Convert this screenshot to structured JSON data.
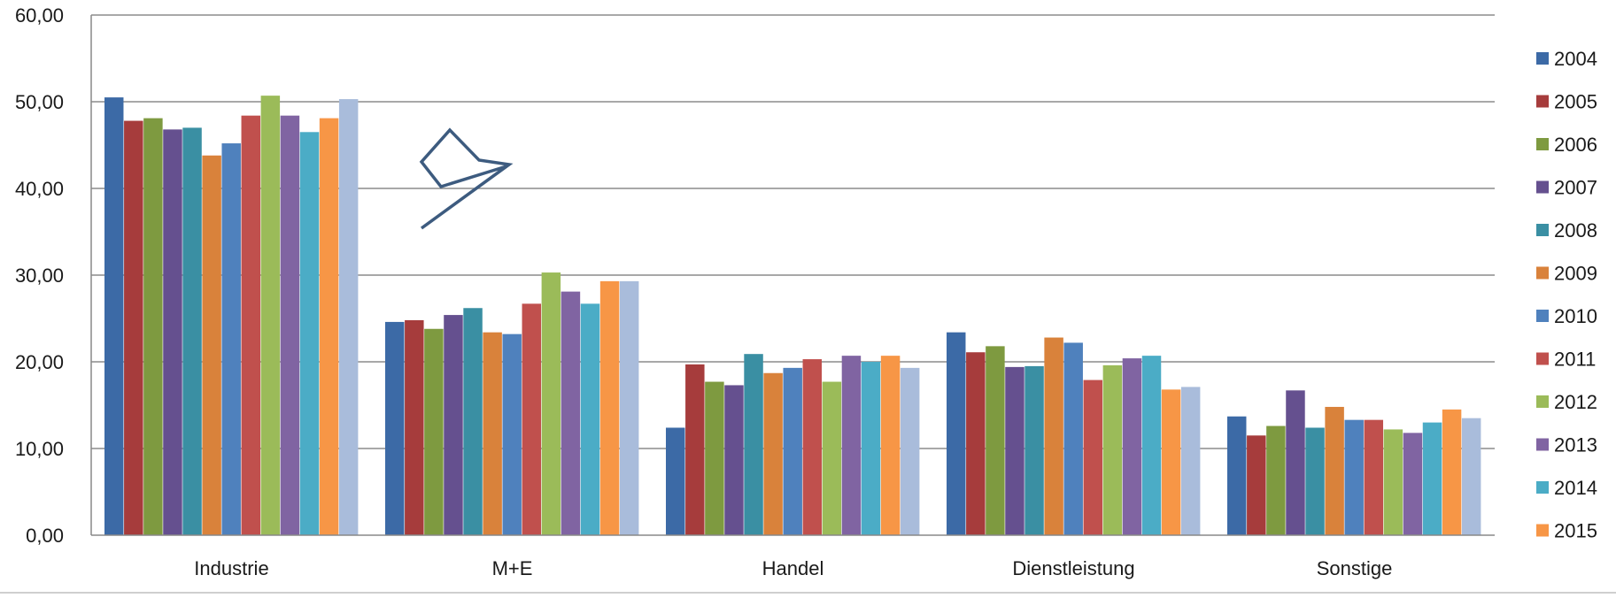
{
  "chart_data": {
    "type": "bar",
    "title": "",
    "xlabel": "",
    "ylabel": "",
    "ylim": [
      0,
      60
    ],
    "yticks": [
      "0,00",
      "10,00",
      "20,00",
      "30,00",
      "40,00",
      "50,00",
      "60,00"
    ],
    "grid": true,
    "legend_position": "right",
    "categories": [
      "Industrie",
      "M+E",
      "Handel",
      "Dienstleistung",
      "Sonstige"
    ],
    "series": [
      {
        "name": "2004",
        "color": "#3C6AA6",
        "values": [
          50.5,
          24.6,
          12.4,
          23.4,
          13.7
        ]
      },
      {
        "name": "2005",
        "color": "#A63C3C",
        "values": [
          47.8,
          24.8,
          19.7,
          21.1,
          11.5
        ]
      },
      {
        "name": "2006",
        "color": "#7E9A40",
        "values": [
          48.1,
          23.8,
          17.7,
          21.8,
          12.6
        ]
      },
      {
        "name": "2007",
        "color": "#65508F",
        "values": [
          46.8,
          25.4,
          17.3,
          19.4,
          16.7
        ]
      },
      {
        "name": "2008",
        "color": "#3A8FA3",
        "values": [
          47.0,
          26.2,
          20.9,
          19.5,
          12.4
        ]
      },
      {
        "name": "2009",
        "color": "#D9823B",
        "values": [
          43.8,
          23.4,
          18.7,
          22.8,
          14.8
        ]
      },
      {
        "name": "2010",
        "color": "#4F81BD",
        "values": [
          45.2,
          23.2,
          19.3,
          22.2,
          13.3
        ]
      },
      {
        "name": "2011",
        "color": "#C0504D",
        "values": [
          48.4,
          26.7,
          20.3,
          17.9,
          13.3
        ]
      },
      {
        "name": "2012",
        "color": "#9BBB59",
        "values": [
          50.7,
          30.3,
          17.7,
          19.6,
          12.2
        ]
      },
      {
        "name": "2013",
        "color": "#8064A2",
        "values": [
          48.4,
          28.1,
          20.7,
          20.4,
          11.8
        ]
      },
      {
        "name": "2014",
        "color": "#4BACC6",
        "values": [
          46.5,
          26.7,
          20.0,
          20.7,
          13.0
        ]
      },
      {
        "name": "2015",
        "color": "#F79646",
        "values": [
          48.1,
          29.3,
          20.7,
          16.8,
          14.5
        ]
      },
      {
        "name": "",
        "color": "#A9BCDB",
        "values": [
          50.3,
          29.3,
          19.3,
          17.1,
          13.5
        ]
      }
    ]
  }
}
